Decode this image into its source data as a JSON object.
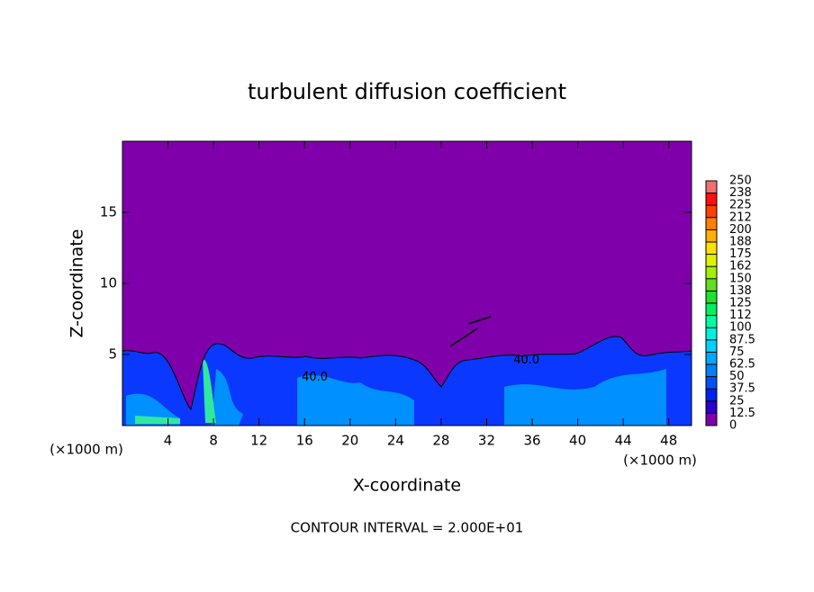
{
  "chart_data": {
    "type": "heatmap",
    "title": "turbulent diffusion coefficient",
    "xlabel": "X-coordinate",
    "ylabel": "Z-coordinate",
    "x_unit_label": "(×1000 m)",
    "annotation": "CONTOUR INTERVAL = 2.000E+01",
    "xlim": [
      0,
      50
    ],
    "xticks": [
      4,
      8,
      12,
      16,
      20,
      24,
      28,
      32,
      36,
      40,
      44,
      48
    ],
    "ylim": [
      0,
      20
    ],
    "yticks": [
      5,
      10,
      15
    ],
    "background_color": "#7f00aa",
    "contour_labels": [
      {
        "text": "40.0",
        "x": 16.9,
        "z": 3.4
      },
      {
        "text": "40.0",
        "x": 35.5,
        "z": 4.6
      }
    ],
    "colorbar": {
      "bounds": [
        0,
        12.5,
        25,
        37.5,
        50,
        62.5,
        75,
        87.5,
        100,
        {
          "value": 112.5,
          "label": "112"
        },
        125,
        {
          "value": 137.5,
          "label": "138"
        },
        150,
        {
          "value": 162.5,
          "label": "162"
        },
        175,
        {
          "value": 187.5,
          "label": "188"
        },
        200,
        {
          "value": 212.5,
          "label": "212"
        },
        225,
        {
          "value": 237.5,
          "label": "238"
        },
        250
      ],
      "colors": [
        "#7f00aa",
        "#2a00cc",
        "#0022ee",
        "#0050ff",
        "#0080ff",
        "#00a8ff",
        "#00d0ff",
        "#00f0e0",
        "#00ffa0",
        "#00f060",
        "#20e030",
        "#60e020",
        "#a0f000",
        "#e0f000",
        "#ffe000",
        "#ffb000",
        "#ff8000",
        "#ff4000",
        "#ff1010",
        "#f07070"
      ]
    }
  }
}
